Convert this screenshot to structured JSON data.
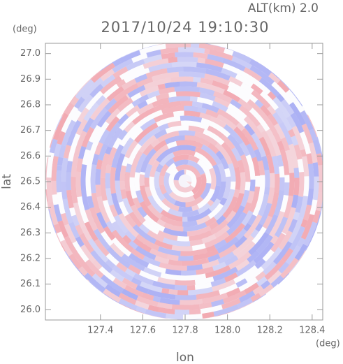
{
  "chart_data": {
    "type": "radar-ppi",
    "title": "2017/10/24 19:10:30",
    "subtitle": "ALT(km) 2.0",
    "x_label": "lon",
    "y_label": "lat",
    "x_unit": "(deg)",
    "y_unit": "(deg)",
    "xlim": [
      127.14,
      128.45
    ],
    "ylim": [
      25.96,
      27.04
    ],
    "xticks": [
      127.4,
      127.6,
      127.8,
      {
        "value": 128.0,
        "label": "128.0"
      },
      128.2,
      128.4
    ],
    "yticks": [
      {
        "value": 26.0,
        "label": "26.0"
      },
      26.1,
      26.2,
      26.3,
      26.4,
      26.5,
      26.6,
      26.7,
      26.8,
      26.9,
      {
        "value": 27.0,
        "label": "27.0"
      }
    ]
  }
}
